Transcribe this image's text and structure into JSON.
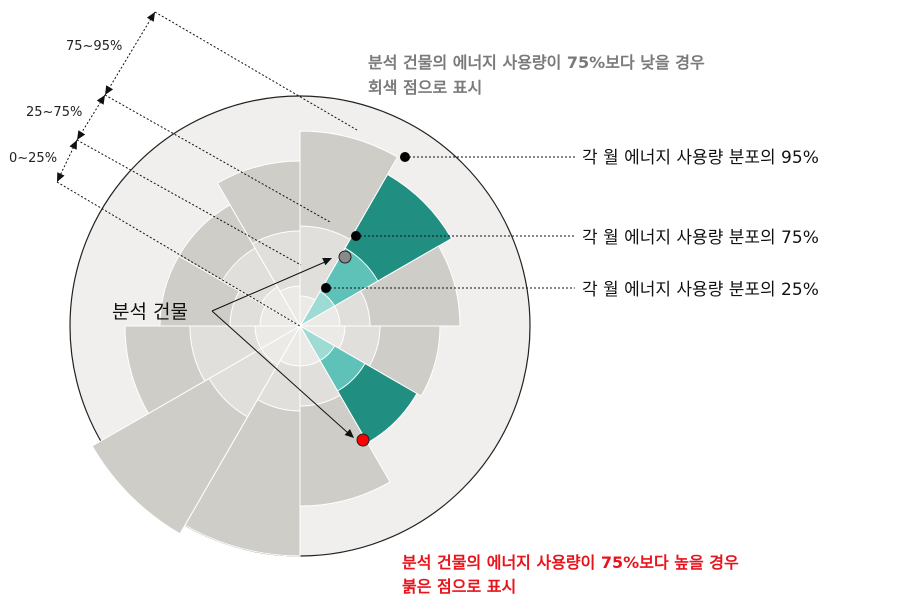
{
  "ranges": {
    "top": "75~95%",
    "mid": "25~75%",
    "low": "0~25%"
  },
  "notes": {
    "gray_line1": "분석 건물의 에너지 사용량이 75%보다 낮을 경우",
    "gray_line2": "회색 점으로 표시",
    "red_line1": "분석 건물의 에너지 사용량이 75%보다 높을 경우",
    "red_line2": "붉은 점으로 표시"
  },
  "dist_labels": {
    "p95": "각 월 에너지 사용량 분포의 95%",
    "p75": "각 월 에너지 사용량 분포의 75%",
    "p25": "각 월 에너지 사용량 분포의 25%"
  },
  "building_label": "분석 건물",
  "colors": {
    "outer_circle": "#f0efed",
    "gray_outer": "#cfcdc7",
    "gray_mid": "#e0dfdb",
    "gray_inner": "#eceae7",
    "teal_outer": "#208f82",
    "teal_mid": "#5ec2b8",
    "teal_inner": "#9ddbd4",
    "gray_point": "#8a8a8a",
    "red_point": "#ff0000",
    "gray_note": "#7a7a7a",
    "red_note": "#e8141c"
  }
}
